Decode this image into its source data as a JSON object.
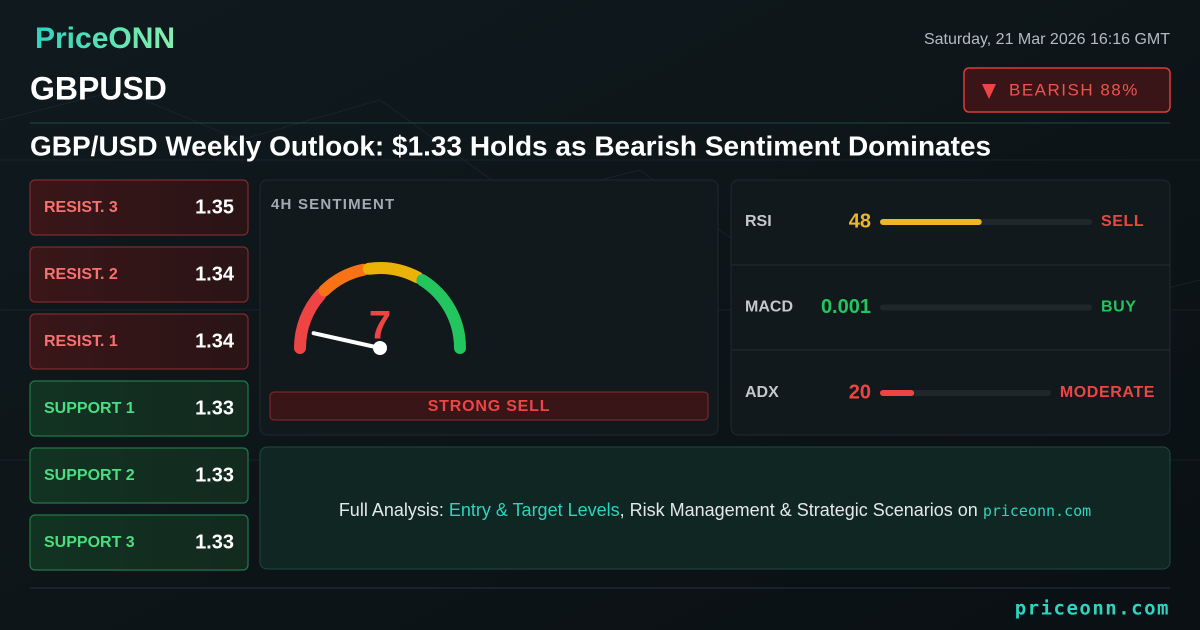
{
  "brand": "PriceONN",
  "date": "Saturday, 21 Mar 2026 16:16 GMT",
  "symbol": "GBPUSD",
  "badge": "BEARISH 88%",
  "headline": "GBP/USD Weekly Outlook: $1.33 Holds as Bearish Sentiment Dominates",
  "levels": [
    {
      "label": "RESIST. 3",
      "value": 1.35,
      "kind": "resistance"
    },
    {
      "label": "RESIST. 2",
      "value": 1.34,
      "kind": "resistance"
    },
    {
      "label": "RESIST. 1",
      "value": 1.34,
      "kind": "resistance"
    },
    {
      "label": "SUPPORT 1",
      "value": 1.33,
      "kind": "support"
    },
    {
      "label": "SUPPORT 2",
      "value": 1.33,
      "kind": "support"
    },
    {
      "label": "SUPPORT 3",
      "value": 1.33,
      "kind": "support"
    }
  ],
  "sentiment": {
    "title": "4H SENTIMENT",
    "score": 7,
    "range": [
      0,
      100
    ],
    "verdict": "STRONG SELL"
  },
  "indicators": {
    "range": [
      0,
      100
    ],
    "rows": [
      {
        "name": "RSI",
        "value": 48,
        "color": "#f0b429",
        "signal": "SELL",
        "signal_color": "#ef4444"
      },
      {
        "name": "MACD",
        "value": 0.001,
        "color": "#22c55e",
        "signal": "BUY",
        "signal_color": "#22c55e"
      },
      {
        "name": "ADX",
        "value": 20,
        "color": "#ef4444",
        "signal": "MODERATE",
        "signal_color": "#ef4444"
      }
    ]
  },
  "cta": {
    "parts": [
      "Full Analysis: ",
      "Entry & Target Levels",
      ", Risk Management & Strategic Scenarios on ",
      "priceonn.com"
    ]
  },
  "footer": "priceonn.com"
}
